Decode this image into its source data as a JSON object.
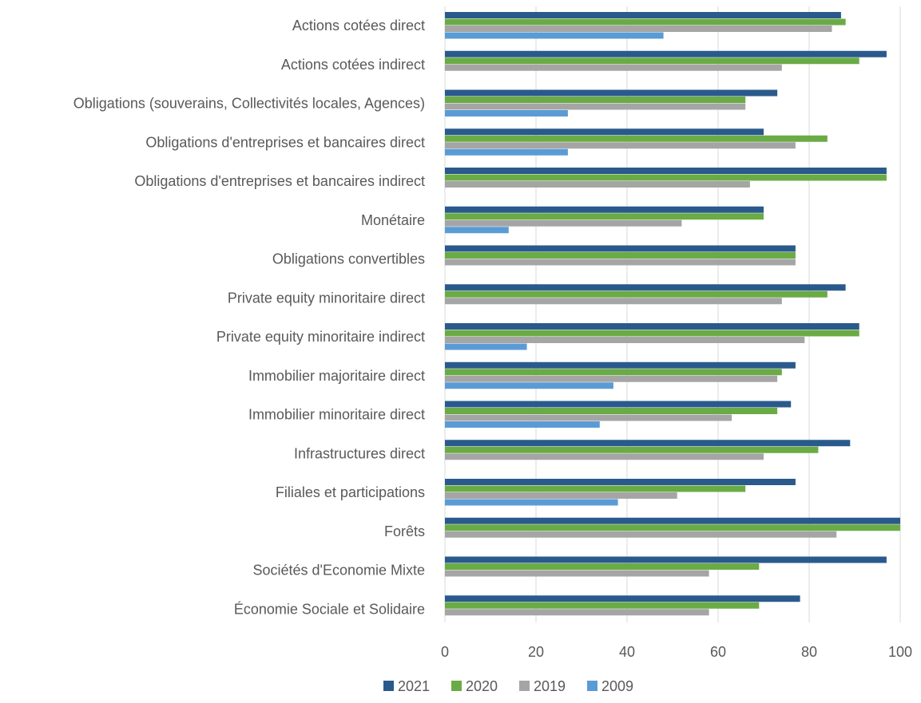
{
  "chart_data": {
    "type": "bar",
    "orientation": "horizontal",
    "title": "",
    "xlabel": "",
    "ylabel": "",
    "xlim": [
      0,
      100
    ],
    "xticks": [
      0,
      20,
      40,
      60,
      80,
      100
    ],
    "grid": true,
    "legend_position": "bottom",
    "categories": [
      "Actions cotées direct",
      "Actions cotées indirect",
      "Obligations (souverains, Collectivités locales, Agences)",
      "Obligations d'entreprises et bancaires direct",
      "Obligations d'entreprises et bancaires indirect",
      "Monétaire",
      "Obligations convertibles",
      "Private equity minoritaire direct",
      "Private equity minoritaire indirect",
      "Immobilier majoritaire direct",
      "Immobilier minoritaire direct",
      "Infrastructures direct",
      "Filiales et participations",
      "Forêts",
      "Sociétés d'Economie Mixte",
      "Économie Sociale et Solidaire"
    ],
    "series": [
      {
        "name": "2021",
        "color": "#2a5a8c",
        "values": [
          87,
          97,
          73,
          70,
          97,
          70,
          77,
          88,
          91,
          77,
          76,
          89,
          77,
          100,
          97,
          78
        ]
      },
      {
        "name": "2020",
        "color": "#6aab45",
        "values": [
          88,
          91,
          66,
          84,
          97,
          70,
          77,
          84,
          91,
          74,
          73,
          82,
          66,
          100,
          69,
          69
        ]
      },
      {
        "name": "2019",
        "color": "#a5a5a5",
        "values": [
          85,
          74,
          66,
          77,
          67,
          52,
          77,
          74,
          79,
          73,
          63,
          70,
          51,
          86,
          58,
          58
        ]
      },
      {
        "name": "2009",
        "color": "#5b9bd5",
        "values": [
          48,
          null,
          27,
          27,
          null,
          14,
          null,
          null,
          18,
          37,
          34,
          null,
          38,
          null,
          null,
          null
        ]
      }
    ]
  }
}
